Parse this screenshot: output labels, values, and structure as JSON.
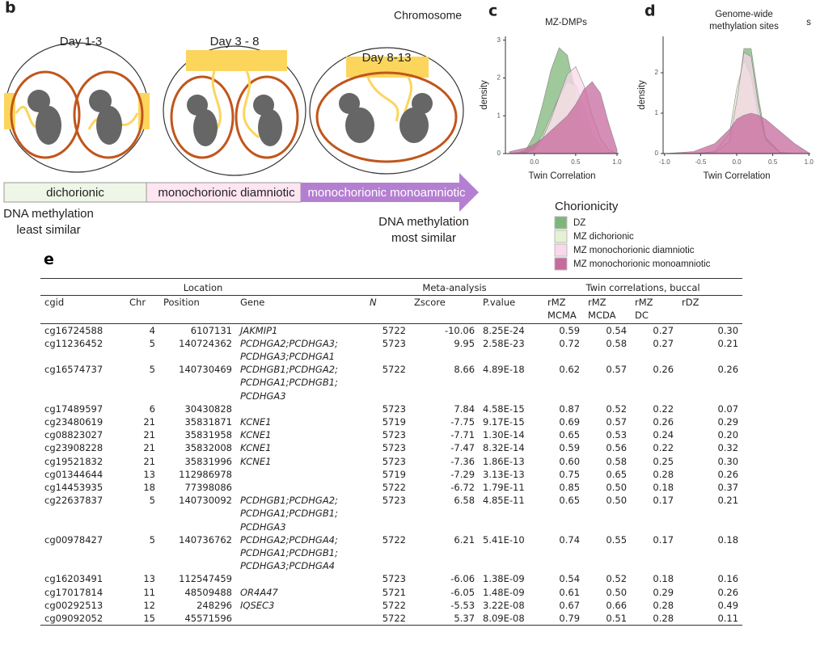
{
  "panel_b": {
    "label": "b",
    "chromosome": "Chromosome",
    "stages": [
      "Day 1-3",
      "Day 3 - 8",
      "Day 8-13"
    ],
    "types": [
      "dichorionic",
      "monochorionic diamniotic",
      "monochorionic monoamniotic"
    ],
    "least_similar": [
      "DNA methylation",
      "least similar"
    ],
    "most_similar": [
      "DNA methylation",
      "most similar"
    ]
  },
  "chart_data": [
    {
      "type": "area",
      "panel_label": "c",
      "title": [
        "MZ-DMPs"
      ],
      "x_label": "Twin Correlation",
      "y_label": "density",
      "legend_title": "Chorionicity",
      "x": [
        -0.3,
        -0.2,
        -0.1,
        0,
        0.1,
        0.2,
        0.3,
        0.4,
        0.5,
        0.6,
        0.7,
        0.8,
        0.9,
        1.0
      ],
      "series": [
        {
          "name": "DZ",
          "color": "#7fb57a",
          "values": [
            0,
            0.02,
            0.1,
            0.5,
            1.3,
            2.2,
            2.8,
            2.6,
            1.6,
            0.7,
            0.2,
            0.05,
            0,
            0
          ]
        },
        {
          "name": "MZ dichorionic",
          "color": "#e4f1d2",
          "values": [
            0,
            0,
            0.03,
            0.15,
            0.5,
            1.0,
            1.5,
            1.9,
            1.8,
            1.2,
            0.5,
            0.15,
            0.03,
            0
          ]
        },
        {
          "name": "MZ monochorionic diamniotic",
          "color": "#f8d8ea",
          "values": [
            0,
            0,
            0.02,
            0.1,
            0.4,
            0.9,
            1.5,
            2.1,
            2.3,
            1.8,
            1.0,
            0.4,
            0.1,
            0
          ]
        },
        {
          "name": "MZ monochorionic monoamniotic",
          "color": "#c76a9e",
          "values": [
            0.05,
            0.1,
            0.15,
            0.25,
            0.4,
            0.6,
            0.8,
            1.0,
            1.3,
            1.7,
            1.9,
            1.6,
            0.8,
            0.1
          ]
        }
      ],
      "xlim": [
        -0.35,
        1.02
      ],
      "xticks": [
        {
          "value": 0,
          "label": "0.0"
        },
        0.5,
        {
          "value": 1,
          "label": "1.0"
        }
      ],
      "ylim": [
        0,
        3.1
      ],
      "yticks": [
        0,
        1,
        2,
        3
      ]
    },
    {
      "type": "area",
      "panel_label": "d",
      "title": [
        "Genome-wide",
        "methylation sites"
      ],
      "note": "s",
      "x_label": "Twin Correlation",
      "y_label": "density",
      "x": [
        -1,
        -0.6,
        -0.3,
        -0.1,
        0,
        0.1,
        0.2,
        0.3,
        0.4,
        0.6,
        0.8,
        1.0
      ],
      "series": [
        {
          "color": "#7fb57a",
          "values": [
            0,
            0,
            0.02,
            0.2,
            1.2,
            2.6,
            2.6,
            1.4,
            0.4,
            0.03,
            0,
            0
          ]
        },
        {
          "color": "#e4f1d2",
          "values": [
            0,
            0,
            0.05,
            0.5,
            1.6,
            2.3,
            1.9,
            0.9,
            0.3,
            0.02,
            0,
            0
          ]
        },
        {
          "color": "#f8d8ea",
          "values": [
            0,
            0,
            0.03,
            0.3,
            1.3,
            2.5,
            2.4,
            1.2,
            0.35,
            0.02,
            0,
            0
          ]
        },
        {
          "color": "#c76a9e",
          "values": [
            0,
            0.05,
            0.25,
            0.6,
            0.85,
            0.95,
            1.0,
            0.95,
            0.85,
            0.55,
            0.25,
            0.02
          ]
        }
      ],
      "xlim": [
        -1.02,
        1.02
      ],
      "xticks": [
        {
          "value": -1,
          "label": "-1.0"
        },
        -0.5,
        {
          "value": 0,
          "label": "0.0"
        },
        0.5,
        {
          "value": 1,
          "label": "1.0"
        }
      ],
      "ylim": [
        0,
        2.9
      ],
      "yticks": [
        0,
        1,
        2
      ]
    }
  ],
  "panel_e": {
    "label": "e",
    "table": {
      "groups": [
        "Location",
        "Meta-analysis",
        "Twin correlations, buccal"
      ],
      "columns": [
        [
          "cgid"
        ],
        [
          "Chr"
        ],
        [
          "Position"
        ],
        [
          "Gene"
        ],
        [
          "N"
        ],
        [
          "Zscore"
        ],
        [
          "P.value"
        ],
        [
          "rMZ",
          "MCMA"
        ],
        [
          "rMZ",
          "MCDA"
        ],
        [
          "rMZ",
          "DC"
        ],
        [
          "rDZ"
        ]
      ],
      "rows": [
        [
          "cg16724588",
          "4",
          "6107131",
          [
            "JAKMIP1"
          ],
          "5722",
          "-10.06",
          "8.25E-24",
          "0.59",
          "0.54",
          "0.27",
          "0.30"
        ],
        [
          "cg11236452",
          "5",
          "140724362",
          [
            "PCDHGA2;PCDHGA3;",
            "PCDHGA3;PCDHGA1"
          ],
          "5723",
          "9.95",
          "2.58E-23",
          "0.72",
          "0.58",
          "0.27",
          "0.21"
        ],
        [
          "cg16574737",
          "5",
          "140730469",
          [
            "PCDHGB1;PCDHGA2;",
            "PCDHGA1;PCDHGB1;",
            "PCDHGA3"
          ],
          "5722",
          "8.66",
          "4.89E-18",
          "0.62",
          "0.57",
          "0.26",
          "0.26"
        ],
        [
          "cg17489597",
          "6",
          "30430828",
          [],
          "5723",
          "7.84",
          "4.58E-15",
          "0.87",
          "0.52",
          "0.22",
          "0.07"
        ],
        [
          "cg23480619",
          "21",
          "35831871",
          [
            "KCNE1"
          ],
          "5719",
          "-7.75",
          "9.17E-15",
          "0.69",
          "0.57",
          "0.26",
          "0.29"
        ],
        [
          "cg08823027",
          "21",
          "35831958",
          [
            "KCNE1"
          ],
          "5723",
          "-7.71",
          "1.30E-14",
          "0.65",
          "0.53",
          "0.24",
          "0.20"
        ],
        [
          "cg23908228",
          "21",
          "35832008",
          [
            "KCNE1"
          ],
          "5723",
          "-7.47",
          "8.32E-14",
          "0.59",
          "0.56",
          "0.22",
          "0.32"
        ],
        [
          "cg19521832",
          "21",
          "35831996",
          [
            "KCNE1"
          ],
          "5723",
          "-7.36",
          "1.86E-13",
          "0.60",
          "0.58",
          "0.25",
          "0.30"
        ],
        [
          "cg01344644",
          "13",
          "112986978",
          [],
          "5719",
          "-7.29",
          "3.13E-13",
          "0.75",
          "0.65",
          "0.28",
          "0.26"
        ],
        [
          "cg14453935",
          "18",
          "77398086",
          [],
          "5722",
          "-6.72",
          "1.79E-11",
          "0.85",
          "0.50",
          "0.18",
          "0.37"
        ],
        [
          "cg22637837",
          "5",
          "140730092",
          [
            "PCDHGB1;PCDHGA2;",
            "PCDHGA1;PCDHGB1;",
            "PCDHGA3"
          ],
          "5723",
          "6.58",
          "4.85E-11",
          "0.65",
          "0.50",
          "0.17",
          "0.21"
        ],
        [
          "cg00978427",
          "5",
          "140736762",
          [
            "PCDHGA2;PCDHGA4;",
            "PCDHGA1;PCDHGB1;",
            "PCDHGA3;PCDHGA4"
          ],
          "5722",
          "6.21",
          "5.41E-10",
          "0.74",
          "0.55",
          "0.17",
          "0.18"
        ],
        [
          "cg16203491",
          "13",
          "112547459",
          [],
          "5723",
          "-6.06",
          "1.38E-09",
          "0.54",
          "0.52",
          "0.18",
          "0.16"
        ],
        [
          "cg17017814",
          "11",
          "48509488",
          [
            "OR4A47"
          ],
          "5721",
          "-6.05",
          "1.48E-09",
          "0.61",
          "0.50",
          "0.29",
          "0.26"
        ],
        [
          "cg00292513",
          "12",
          "248296",
          [
            "IQSEC3"
          ],
          "5722",
          "-5.53",
          "3.22E-08",
          "0.67",
          "0.66",
          "0.28",
          "0.49"
        ],
        [
          "cg09092052",
          "15",
          "45571596",
          [],
          "5722",
          "5.37",
          "8.09E-08",
          "0.79",
          "0.51",
          "0.28",
          "0.11"
        ]
      ]
    }
  }
}
